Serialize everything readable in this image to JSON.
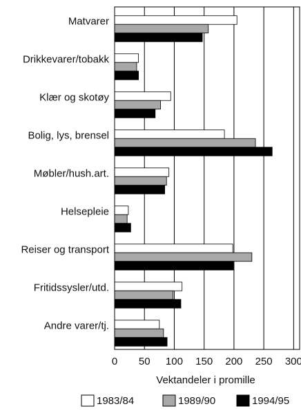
{
  "chart_data": {
    "type": "hbar",
    "xlabel": "Vektandeler i promille",
    "categories": [
      "Matvarer",
      "Drikkevarer/tobakk",
      "Klær og skotøy",
      "Bolig, lys, brensel",
      "Møbler/hush.art.",
      "Helsepleie",
      "Reiser og transport",
      "Fritidssysler/utd.",
      "Andre varer/tj."
    ],
    "series": [
      {
        "name": "1983/84",
        "color": "#ffffff",
        "values": [
          205,
          40,
          94,
          184,
          91,
          23,
          198,
          113,
          75
        ]
      },
      {
        "name": "1989/90",
        "color": "#a8a8a8",
        "values": [
          157,
          37,
          77,
          236,
          87,
          21,
          230,
          98,
          82
        ]
      },
      {
        "name": "1994/95",
        "color": "#000000",
        "values": [
          147,
          40,
          68,
          264,
          84,
          27,
          199,
          111,
          88
        ]
      }
    ],
    "xlim": [
      0,
      310
    ],
    "xticks": [
      0,
      50,
      100,
      150,
      200,
      250,
      300
    ],
    "grid": true
  }
}
